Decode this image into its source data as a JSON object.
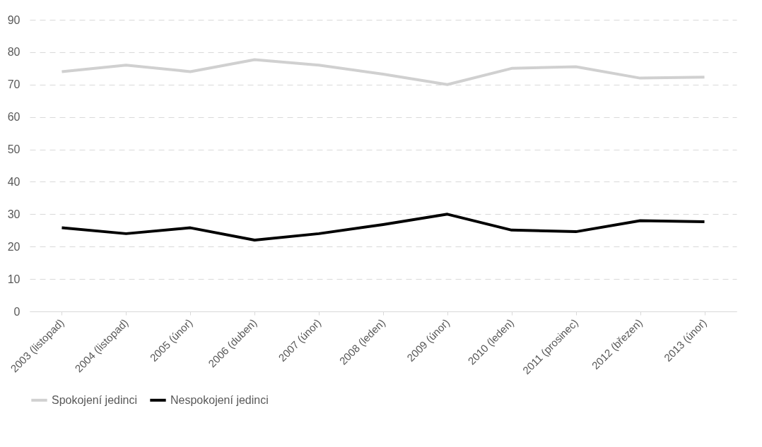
{
  "chart_data": {
    "type": "line",
    "categories": [
      "2003 (listopad)",
      "2004 (listopad)",
      "2005 (únor)",
      "2006 (duben)",
      "2007 (únor)",
      "2008 (leden)",
      "2009 (únor)",
      "2010 (leden)",
      "2011 (prosinec)",
      "2012 (březen)",
      "2013 (únor)"
    ],
    "series": [
      {
        "name": "Spokojení jedinci",
        "color": "#d0d0d0",
        "values": [
          74,
          76,
          74,
          77.7,
          76,
          73.2,
          70,
          75,
          75.5,
          72,
          72.3
        ]
      },
      {
        "name": "Nespokojení jedinci",
        "color": "#000000",
        "values": [
          25.8,
          24,
          25.8,
          22,
          24,
          26.8,
          30,
          25.1,
          24.6,
          28,
          27.7
        ]
      }
    ],
    "ylim": [
      0,
      90
    ],
    "yticks": [
      0,
      10,
      20,
      30,
      40,
      50,
      60,
      70,
      80,
      90
    ],
    "grid": "y",
    "legend": "bottom",
    "line_style": "solid",
    "marker": "none"
  }
}
